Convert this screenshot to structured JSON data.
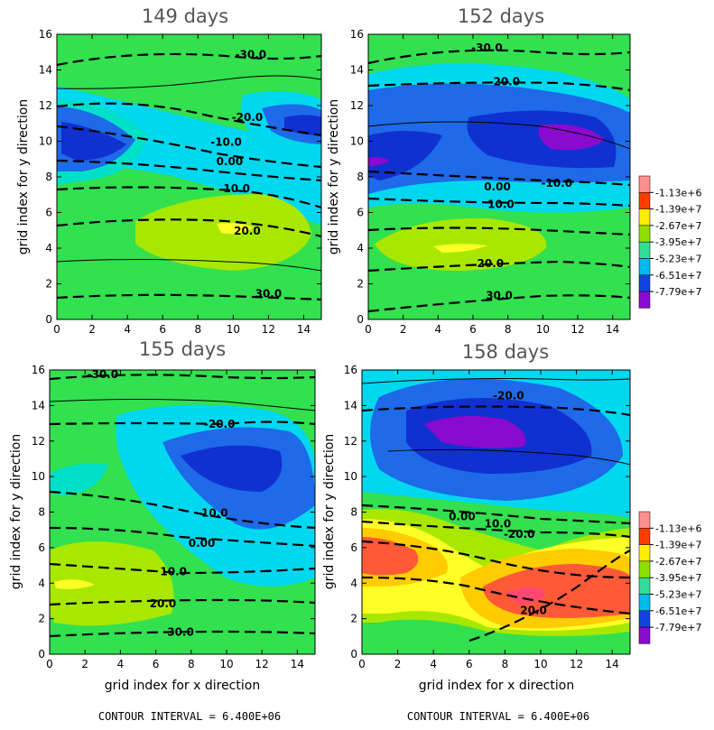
{
  "chart_data": {
    "type": "heatmap",
    "legend": {
      "values": [
        "-1.13e+6",
        "-1.39e+7",
        "-2.67e+7",
        "-3.95e+7",
        "-5.23e+7",
        "-6.51e+7",
        "-7.79e+7"
      ],
      "colors": [
        "#ff9090",
        "#ff3c00",
        "#ffee00",
        "#8ee000",
        "#33dd99",
        "#00bbee",
        "#1144dd",
        "#8a0ad0"
      ]
    },
    "background_colors": {
      "c1": "#ff5a38",
      "c2": "#ffcc00",
      "c3": "#ffff28",
      "c4": "#a8e800",
      "c5": "#33e04f",
      "c6": "#00e0c8",
      "c7": "#00d8f0",
      "c8": "#1e6ae8",
      "c9": "#1030d0",
      "c10": "#8a0ad0"
    },
    "panels": [
      {
        "title": "149 days",
        "xlabel": "",
        "ylabel": "grid index for y direction",
        "xticks": [
          "0",
          "2",
          "4",
          "6",
          "8",
          "10",
          "12",
          "14"
        ],
        "yticks": [
          "0",
          "2",
          "4",
          "6",
          "8",
          "10",
          "12",
          "14",
          "16"
        ],
        "xlim": [
          0,
          15
        ],
        "ylim": [
          0,
          16
        ],
        "contour_labels": [
          {
            "text": "-30.0",
            "x": 11,
            "y": 14.7
          },
          {
            "text": "-20.0",
            "x": 10.8,
            "y": 11.2
          },
          {
            "text": "-10.0",
            "x": 9.6,
            "y": 9.8
          },
          {
            "text": "0.00",
            "x": 9.8,
            "y": 8.7
          },
          {
            "text": "10.0",
            "x": 10.2,
            "y": 7.2
          },
          {
            "text": "20.0",
            "x": 10.8,
            "y": 4.8
          },
          {
            "text": "30.0",
            "x": 12,
            "y": 1.3
          }
        ]
      },
      {
        "title": "152 days",
        "xlabel": "",
        "ylabel": "grid index for y direction",
        "xticks": [
          "0",
          "2",
          "4",
          "6",
          "8",
          "10",
          "12",
          "14"
        ],
        "yticks": [
          "0",
          "2",
          "4",
          "6",
          "8",
          "10",
          "12",
          "14",
          "16"
        ],
        "xlim": [
          0,
          15
        ],
        "ylim": [
          0,
          16
        ],
        "contour_labels": [
          {
            "text": "-30.0",
            "x": 6.8,
            "y": 15.1
          },
          {
            "text": "-20.0",
            "x": 7.8,
            "y": 13.2
          },
          {
            "text": "0.00",
            "x": 7.4,
            "y": 7.3
          },
          {
            "text": "-10.0",
            "x": 10.8,
            "y": 7.5
          },
          {
            "text": "10.0",
            "x": 7.6,
            "y": 6.3
          },
          {
            "text": "20.0",
            "x": 7,
            "y": 3
          },
          {
            "text": "30.0",
            "x": 7.5,
            "y": 1.2
          }
        ]
      },
      {
        "title": "155 days",
        "xlabel": "grid index for x direction",
        "ylabel": "grid index for y direction",
        "xticks": [
          "0",
          "2",
          "4",
          "6",
          "8",
          "10",
          "12",
          "14"
        ],
        "yticks": [
          "0",
          "2",
          "4",
          "6",
          "8",
          "10",
          "12",
          "14",
          "16"
        ],
        "xlim": [
          0,
          15
        ],
        "ylim": [
          0,
          16
        ],
        "contour_labels": [
          {
            "text": "-30.0",
            "x": 3,
            "y": 15.6
          },
          {
            "text": "-20.0",
            "x": 9.6,
            "y": 12.8
          },
          {
            "text": "-10.0",
            "x": 9.2,
            "y": 7.8
          },
          {
            "text": "0.00",
            "x": 8.6,
            "y": 6.1
          },
          {
            "text": "10.0",
            "x": 7,
            "y": 4.5
          },
          {
            "text": "20.0",
            "x": 6.4,
            "y": 2.7
          },
          {
            "text": "30.0",
            "x": 7.4,
            "y": 1.1
          }
        ]
      },
      {
        "title": "158 days",
        "xlabel": "grid index for x direction",
        "ylabel": "grid index for y direction",
        "xticks": [
          "0",
          "2",
          "4",
          "6",
          "8",
          "10",
          "12",
          "14"
        ],
        "yticks": [
          "0",
          "2",
          "4",
          "6",
          "8",
          "10",
          "12",
          "14",
          "16"
        ],
        "xlim": [
          0,
          15
        ],
        "ylim": [
          0,
          16
        ],
        "contour_labels": [
          {
            "text": "-20.0",
            "x": 8.2,
            "y": 14.4
          },
          {
            "text": "0.00",
            "x": 5.6,
            "y": 7.6
          },
          {
            "text": "10.0",
            "x": 7.6,
            "y": 7.2
          },
          {
            "text": "-20.0",
            "x": 8.8,
            "y": 6.6
          },
          {
            "text": "20.0",
            "x": 9.6,
            "y": 2.3
          }
        ]
      }
    ],
    "footer": [
      "CONTOUR INTERVAL = 6.400E+06",
      "CONTOUR INTERVAL = 6.400E+06"
    ]
  }
}
